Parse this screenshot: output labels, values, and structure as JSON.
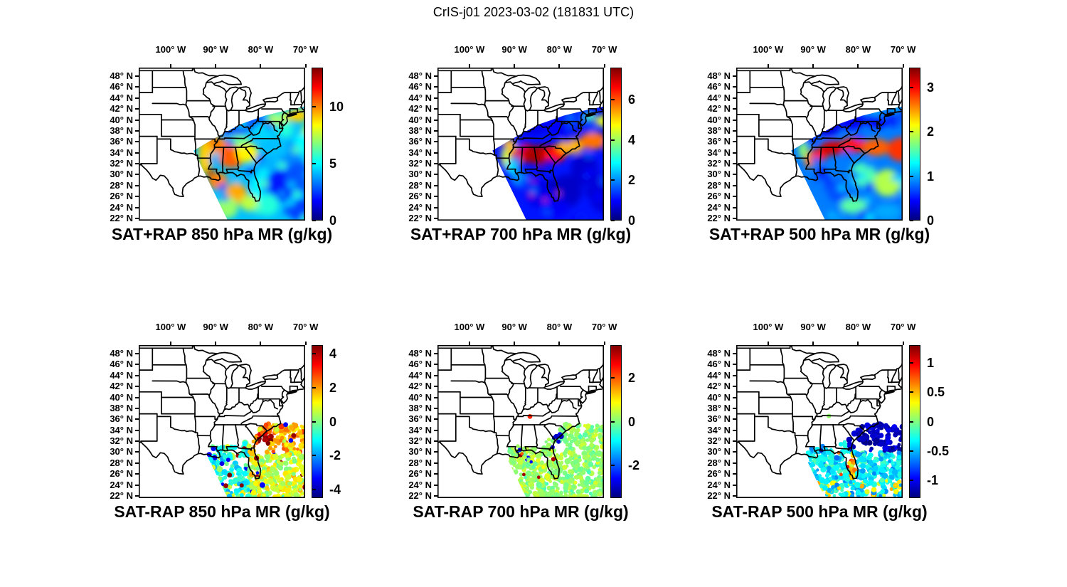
{
  "figure": {
    "title": "CrIS-j01 2023-03-02 (181831 UTC)",
    "background": "#ffffff",
    "instrument": "CrIS-j01",
    "date": "2023-03-02",
    "time_utc": "181831"
  },
  "axes": {
    "lon_labels": [
      "100° W",
      "90° W",
      "80° W",
      "70° W"
    ],
    "lon_values": [
      -100,
      -90,
      -80,
      -70
    ],
    "lat_labels": [
      "48° N",
      "46° N",
      "44° N",
      "42° N",
      "40° N",
      "38° N",
      "36° N",
      "34° N",
      "32° N",
      "30° N",
      "28° N",
      "26° N",
      "24° N",
      "22° N"
    ],
    "lat_values": [
      48,
      46,
      44,
      42,
      40,
      38,
      36,
      34,
      32,
      30,
      28,
      26,
      24,
      22
    ],
    "lon_range": [
      -107.1,
      -70.1
    ],
    "lat_range": [
      21.6,
      49.56
    ]
  },
  "colormap": {
    "name": "jet",
    "stops": [
      "#00007f",
      "#0000ff",
      "#00ffff",
      "#ffff00",
      "#ff0000",
      "#7f0000"
    ]
  },
  "panels": [
    {
      "title": "SAT+RAP 850 hPa MR (g/kg)",
      "kind": "field",
      "colorbar": {
        "range": [
          0,
          13.4
        ],
        "ticks": [
          {
            "label": "10",
            "value": 10
          },
          {
            "label": "5",
            "value": 5
          },
          {
            "label": "0",
            "value": 0
          }
        ]
      }
    },
    {
      "title": "SAT+RAP 700 hPa MR (g/kg)",
      "kind": "field",
      "colorbar": {
        "range": [
          0,
          7.6
        ],
        "ticks": [
          {
            "label": "6",
            "value": 6
          },
          {
            "label": "4",
            "value": 4
          },
          {
            "label": "2",
            "value": 2
          },
          {
            "label": "0",
            "value": 0
          }
        ]
      }
    },
    {
      "title": "SAT+RAP 500 hPa MR (g/kg)",
      "kind": "field",
      "colorbar": {
        "range": [
          0,
          3.45
        ],
        "ticks": [
          {
            "label": "3",
            "value": 3
          },
          {
            "label": "2",
            "value": 2
          },
          {
            "label": "1",
            "value": 1
          },
          {
            "label": "0",
            "value": 0
          }
        ]
      }
    },
    {
      "title": "SAT-RAP 850 hPa MR (g/kg)",
      "kind": "dots",
      "colorbar": {
        "range": [
          -4.5,
          4.5
        ],
        "ticks": [
          {
            "label": "4",
            "value": 4
          },
          {
            "label": "2",
            "value": 2
          },
          {
            "label": "0",
            "value": 0
          },
          {
            "label": "-2",
            "value": -2
          },
          {
            "label": "-4",
            "value": -4
          }
        ]
      }
    },
    {
      "title": "SAT-RAP 700 hPa MR (g/kg)",
      "kind": "dots",
      "colorbar": {
        "range": [
          -3.5,
          3.5
        ],
        "ticks": [
          {
            "label": "2",
            "value": 2
          },
          {
            "label": "0",
            "value": 0
          },
          {
            "label": "-2",
            "value": -2
          }
        ]
      }
    },
    {
      "title": "SAT-RAP 500 hPa MR (g/kg)",
      "kind": "dots",
      "colorbar": {
        "range": [
          -1.3,
          1.3
        ],
        "ticks": [
          {
            "label": "1",
            "value": 1
          },
          {
            "label": "0.5",
            "value": 0.5
          },
          {
            "label": "0",
            "value": 0
          },
          {
            "label": "-0.5",
            "value": -0.5
          },
          {
            "label": "-1",
            "value": -1
          }
        ]
      }
    }
  ],
  "chart_data": [
    {
      "type": "heatmap",
      "title": "SAT+RAP 850 hPa MR (g/kg)",
      "colormap": "jet",
      "units": "g/kg",
      "value_range": [
        0,
        13.4
      ],
      "colorbar_ticks": [
        0,
        5,
        10
      ],
      "x_ticks": [
        "100° W",
        "90° W",
        "80° W",
        "70° W"
      ],
      "y_ticks": [
        "48° N",
        "46° N",
        "44° N",
        "42° N",
        "40° N",
        "38° N",
        "36° N",
        "34° N",
        "32° N",
        "30° N",
        "28° N",
        "26° N",
        "24° N",
        "22° N"
      ],
      "description": "Satellite swath over SE US and western Atlantic; moist 9-11 g/kg band over MS/AL/GA and Gulf coast, dry 2-3 g/kg over Ohio Valley/KY and east of Florida, yellow 7-9 g/kg patches off New England and mid-Atlantic"
    },
    {
      "type": "heatmap",
      "title": "SAT+RAP 700 hPa MR (g/kg)",
      "colormap": "jet",
      "units": "g/kg",
      "value_range": [
        0,
        7.6
      ],
      "colorbar_ticks": [
        0,
        2,
        4,
        6
      ],
      "x_ticks": [
        "100° W",
        "90° W",
        "80° W",
        "70° W"
      ],
      "y_ticks": [
        "48° N",
        "46° N",
        "44° N",
        "42° N",
        "40° N",
        "38° N",
        "36° N",
        "34° N",
        "32° N",
        "30° N",
        "28° N",
        "26° N",
        "24° N",
        "22° N"
      ],
      "description": "Strong red 6.5-7.5 g/kg moist band over AR/MS/AL/GA near 33-35N extending east over the Atlantic near 35-37N; very dry <1 g/kg ocean south of 31N and band near 38-39N"
    },
    {
      "type": "heatmap",
      "title": "SAT+RAP 500 hPa MR (g/kg)",
      "colormap": "jet",
      "units": "g/kg",
      "value_range": [
        0,
        3.45
      ],
      "colorbar_ticks": [
        0,
        1,
        2,
        3
      ],
      "x_ticks": [
        "100° W",
        "90° W",
        "80° W",
        "70° W"
      ],
      "y_ticks": [
        "48° N",
        "46° N",
        "44° N",
        "42° N",
        "40° N",
        "38° N",
        "36° N",
        "34° N",
        "32° N",
        "30° N",
        "28° N",
        "26° N",
        "24° N",
        "22° N"
      ],
      "description": "Orange-red ~3 g/kg band near 33-36N from Mississippi across the Carolinas and offshore; dry <0.5 g/kg band 38-41N; mixed cyan/yellow 1-2 g/kg over subtropical ocean"
    },
    {
      "type": "scatter",
      "title": "SAT-RAP 850 hPa MR (g/kg)",
      "colormap": "jet",
      "units": "g/kg",
      "value_range": [
        -4.5,
        4.5
      ],
      "colorbar_ticks": [
        -4,
        -2,
        0,
        2,
        4
      ],
      "x_ticks": [
        "100° W",
        "90° W",
        "80° W",
        "70° W"
      ],
      "y_ticks": [
        "48° N",
        "46° N",
        "44° N",
        "42° N",
        "40° N",
        "38° N",
        "36° N",
        "34° N",
        "32° N",
        "30° N",
        "28° N",
        "26° N",
        "24° N",
        "22° N"
      ],
      "description": "Difference dots only over Gulf/Florida/western Atlantic south of ~34N: +1 to +3 (yellow/orange) over Atlantic 29-34N with red +4 cluster near 32N 79W, near-zero to -2 (cyan) over the Gulf, scattered dark-red and dark-blue outliers"
    },
    {
      "type": "scatter",
      "title": "SAT-RAP 700 hPa MR (g/kg)",
      "colormap": "jet",
      "units": "g/kg",
      "value_range": [
        -3.5,
        3.5
      ],
      "colorbar_ticks": [
        -2,
        0,
        2
      ],
      "x_ticks": [
        "100° W",
        "90° W",
        "80° W",
        "70° W"
      ],
      "y_ticks": [
        "48° N",
        "46° N",
        "44° N",
        "42° N",
        "40° N",
        "38° N",
        "36° N",
        "34° N",
        "32° N",
        "30° N",
        "28° N",
        "26° N",
        "24° N",
        "22° N"
      ],
      "description": "Mostly near-zero pale-green differences; dark-blue -3 cluster near 33N 80.5W, small dark-red +3 dots along Gulf coast and south of Florida, one orange dot inland near 36.5N 86.5W"
    },
    {
      "type": "scatter",
      "title": "SAT-RAP 500 hPa MR (g/kg)",
      "colormap": "jet",
      "units": "g/kg",
      "value_range": [
        -1.3,
        1.3
      ],
      "colorbar_ticks": [
        -1,
        -0.5,
        0,
        0.5,
        1
      ],
      "x_ticks": [
        "100° W",
        "90° W",
        "80° W",
        "70° W"
      ],
      "y_ticks": [
        "48° N",
        "46° N",
        "44° N",
        "42° N",
        "40° N",
        "38° N",
        "36° N",
        "34° N",
        "32° N",
        "30° N",
        "28° N",
        "26° N",
        "24° N",
        "22° N"
      ],
      "description": "Cyan -0.3 to -0.5 background; large dark-blue ~-1.2 cluster over coastal Carolinas/Atlantic 30-35N, orange/yellow +0.5 to +1 band along the Florida peninsula, yellow patches near 22-24N, one green dot inland near 36.6N 86.5W"
    }
  ]
}
